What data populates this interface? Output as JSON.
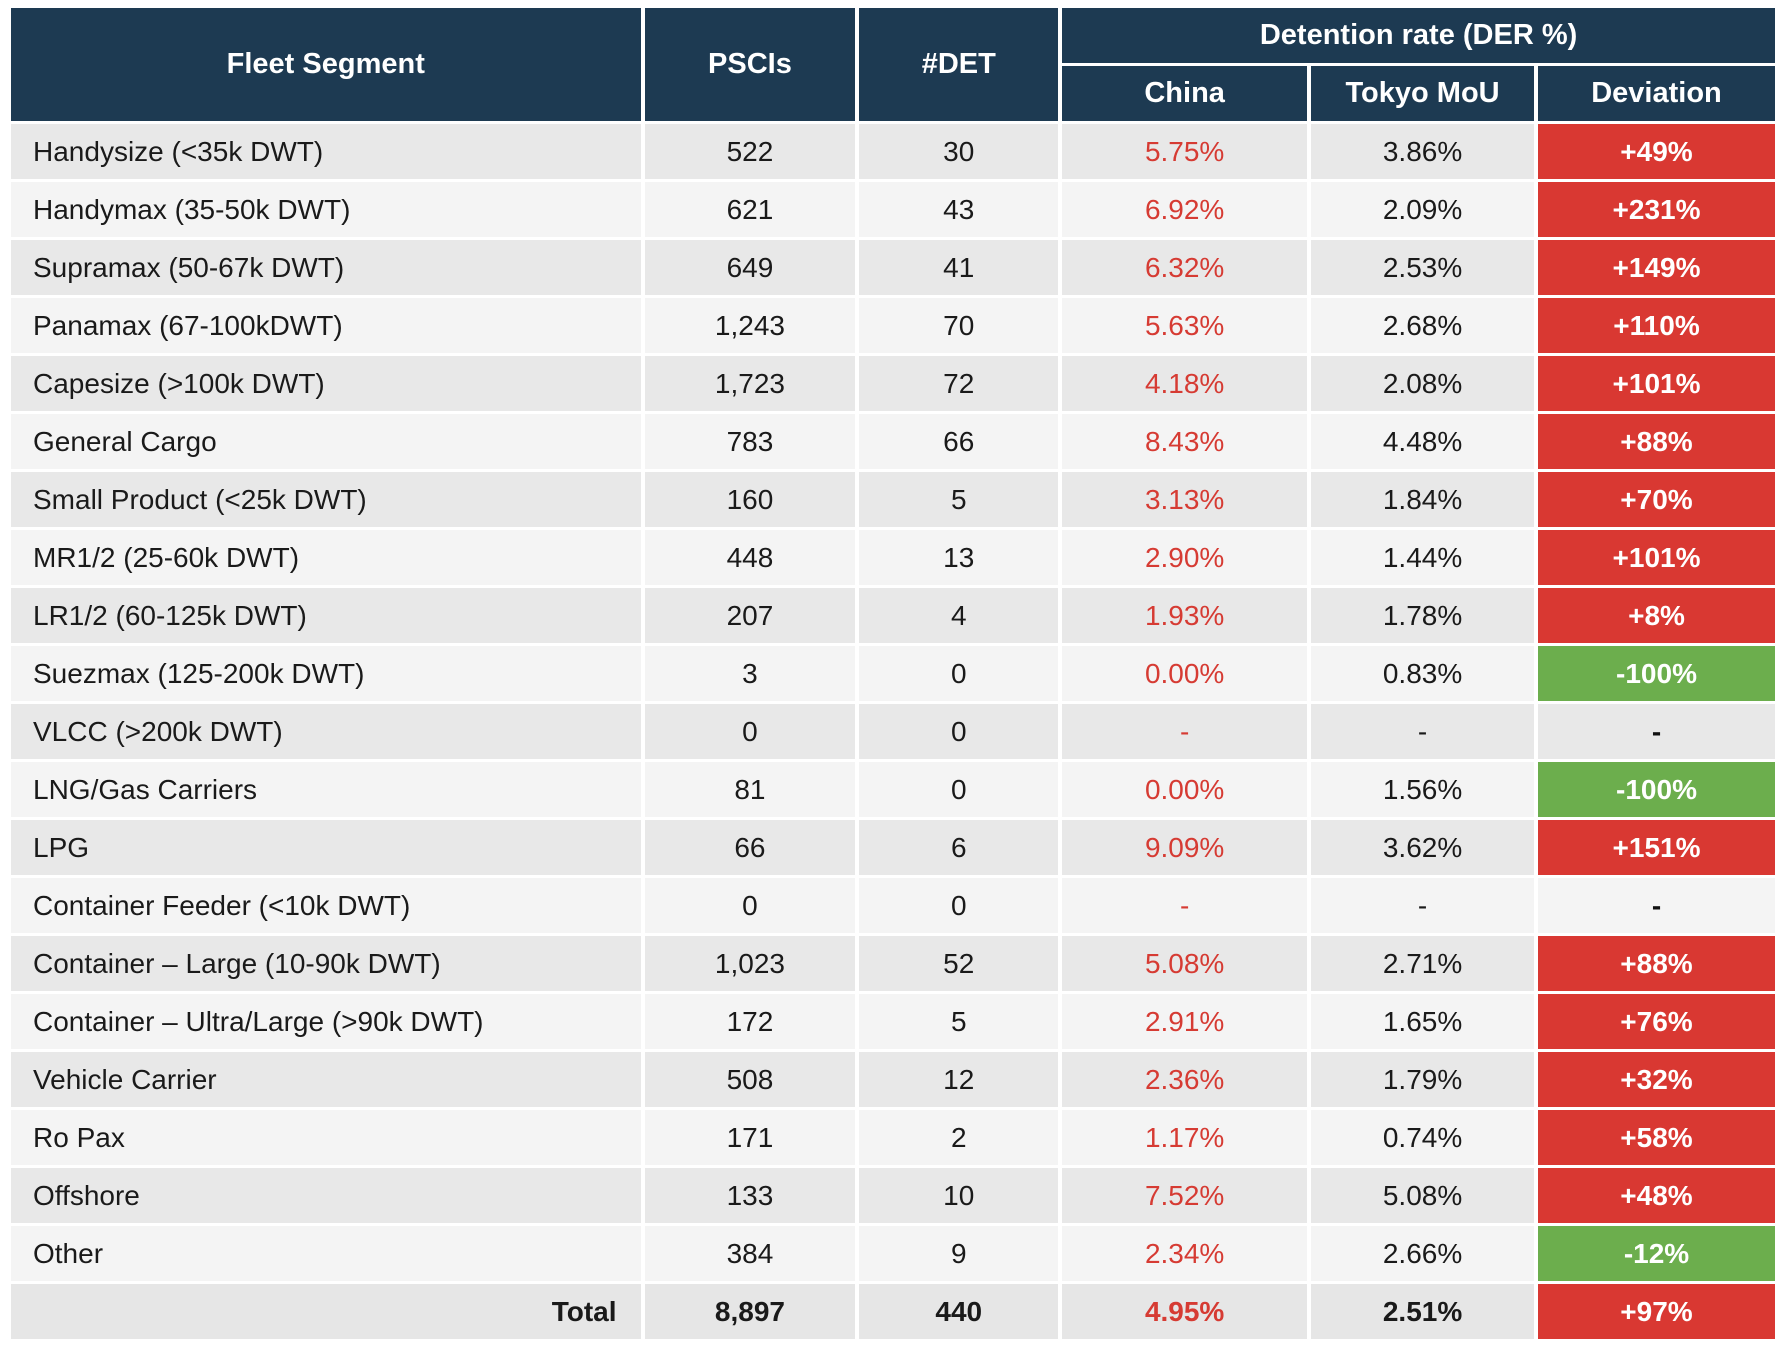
{
  "colors": {
    "header_bg": "#1d3a52",
    "header_text": "#ffffff",
    "red_text": "#d63b33",
    "red_bg": "#d93832",
    "green_bg": "#6cae4d",
    "row_odd": "#e8e8e8",
    "row_even": "#f4f4f4",
    "row_total": "#e6e6e6"
  },
  "header": {
    "fleet_segment": "Fleet Segment",
    "pscis": "PSCIs",
    "det": "#DET",
    "detention_group": "Detention rate (DER %)",
    "china": "China",
    "tokyo_mou": "Tokyo MoU",
    "deviation": "Deviation"
  },
  "chart_data": {
    "type": "table",
    "title": "Fleet Segment detention rates: China vs Tokyo MoU",
    "column_groups": [
      {
        "label": "Detention rate (DER %)",
        "columns": [
          "China",
          "Tokyo MoU",
          "Deviation"
        ]
      }
    ],
    "columns": [
      "Fleet Segment",
      "PSCIs",
      "#DET",
      "China",
      "Tokyo MoU",
      "Deviation"
    ],
    "rows": [
      {
        "segment": "Handysize (<35k DWT)",
        "pscis": "522",
        "det": "30",
        "china": "5.75%",
        "tokyo_mou": "3.86%",
        "deviation": "+49%",
        "deviation_color": "red"
      },
      {
        "segment": "Handymax (35-50k DWT)",
        "pscis": "621",
        "det": "43",
        "china": "6.92%",
        "tokyo_mou": "2.09%",
        "deviation": "+231%",
        "deviation_color": "red"
      },
      {
        "segment": "Supramax (50-67k DWT)",
        "pscis": "649",
        "det": "41",
        "china": "6.32%",
        "tokyo_mou": "2.53%",
        "deviation": "+149%",
        "deviation_color": "red"
      },
      {
        "segment": "Panamax (67-100kDWT)",
        "pscis": "1,243",
        "det": "70",
        "china": "5.63%",
        "tokyo_mou": "2.68%",
        "deviation": "+110%",
        "deviation_color": "red"
      },
      {
        "segment": "Capesize (>100k DWT)",
        "pscis": "1,723",
        "det": "72",
        "china": "4.18%",
        "tokyo_mou": "2.08%",
        "deviation": "+101%",
        "deviation_color": "red"
      },
      {
        "segment": "General Cargo",
        "pscis": "783",
        "det": "66",
        "china": "8.43%",
        "tokyo_mou": "4.48%",
        "deviation": "+88%",
        "deviation_color": "red"
      },
      {
        "segment": "Small Product (<25k DWT)",
        "pscis": "160",
        "det": "5",
        "china": "3.13%",
        "tokyo_mou": "1.84%",
        "deviation": "+70%",
        "deviation_color": "red"
      },
      {
        "segment": "MR1/2 (25-60k DWT)",
        "pscis": "448",
        "det": "13",
        "china": "2.90%",
        "tokyo_mou": "1.44%",
        "deviation": "+101%",
        "deviation_color": "red"
      },
      {
        "segment": "LR1/2 (60-125k DWT)",
        "pscis": "207",
        "det": "4",
        "china": "1.93%",
        "tokyo_mou": "1.78%",
        "deviation": "+8%",
        "deviation_color": "red"
      },
      {
        "segment": "Suezmax (125-200k DWT)",
        "pscis": "3",
        "det": "0",
        "china": "0.00%",
        "tokyo_mou": "0.83%",
        "deviation": "-100%",
        "deviation_color": "green"
      },
      {
        "segment": "VLCC (>200k DWT)",
        "pscis": "0",
        "det": "0",
        "china": "-",
        "tokyo_mou": "-",
        "deviation": "-",
        "deviation_color": "none"
      },
      {
        "segment": "LNG/Gas Carriers",
        "pscis": "81",
        "det": "0",
        "china": "0.00%",
        "tokyo_mou": "1.56%",
        "deviation": "-100%",
        "deviation_color": "green"
      },
      {
        "segment": "LPG",
        "pscis": "66",
        "det": "6",
        "china": "9.09%",
        "tokyo_mou": "3.62%",
        "deviation": "+151%",
        "deviation_color": "red"
      },
      {
        "segment": "Container Feeder (<10k DWT)",
        "pscis": "0",
        "det": "0",
        "china": "-",
        "tokyo_mou": "-",
        "deviation": "-",
        "deviation_color": "none"
      },
      {
        "segment": "Container – Large (10-90k DWT)",
        "pscis": "1,023",
        "det": "52",
        "china": "5.08%",
        "tokyo_mou": "2.71%",
        "deviation": "+88%",
        "deviation_color": "red"
      },
      {
        "segment": "Container – Ultra/Large (>90k DWT)",
        "pscis": "172",
        "det": "5",
        "china": "2.91%",
        "tokyo_mou": "1.65%",
        "deviation": "+76%",
        "deviation_color": "red"
      },
      {
        "segment": "Vehicle Carrier",
        "pscis": "508",
        "det": "12",
        "china": "2.36%",
        "tokyo_mou": "1.79%",
        "deviation": "+32%",
        "deviation_color": "red"
      },
      {
        "segment": "Ro Pax",
        "pscis": "171",
        "det": "2",
        "china": "1.17%",
        "tokyo_mou": "0.74%",
        "deviation": "+58%",
        "deviation_color": "red"
      },
      {
        "segment": "Offshore",
        "pscis": "133",
        "det": "10",
        "china": "7.52%",
        "tokyo_mou": "5.08%",
        "deviation": "+48%",
        "deviation_color": "red"
      },
      {
        "segment": "Other",
        "pscis": "384",
        "det": "9",
        "china": "2.34%",
        "tokyo_mou": "2.66%",
        "deviation": "-12%",
        "deviation_color": "green"
      }
    ],
    "total_row": {
      "segment": "Total",
      "pscis": "8,897",
      "det": "440",
      "china": "4.95%",
      "tokyo_mou": "2.51%",
      "deviation": "+97%",
      "deviation_color": "red"
    }
  }
}
